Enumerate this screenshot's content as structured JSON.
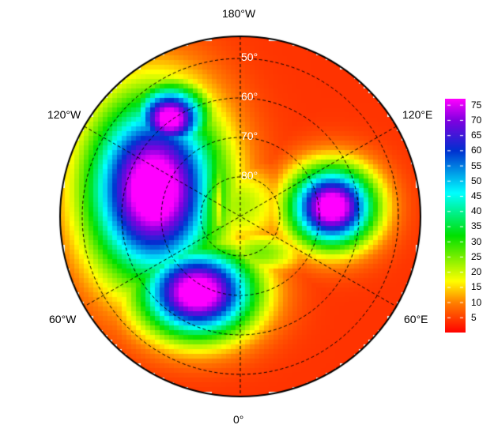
{
  "map": {
    "projection": "north-polar-stereographic",
    "longitude_labels": {
      "top": "180°W",
      "upper_left": "120°W",
      "upper_right": "120°E",
      "lower_left": "60°W",
      "lower_right": "60°E",
      "bottom": "0°"
    },
    "latitude_labels": [
      "50°",
      "60°",
      "70°",
      "80°"
    ],
    "coastlines": true,
    "graticule": "dashed"
  },
  "colorbar": {
    "ticks": [
      "75",
      "70",
      "65",
      "60",
      "55",
      "50",
      "45",
      "40",
      "35",
      "30",
      "25",
      "20",
      "15",
      "10",
      "5"
    ],
    "range": [
      1,
      77
    ],
    "colormap": [
      "#ff0000",
      "#ff8000",
      "#ffff00",
      "#00e000",
      "#00ffff",
      "#0030d0",
      "#8000e0",
      "#ff00ff"
    ]
  }
}
